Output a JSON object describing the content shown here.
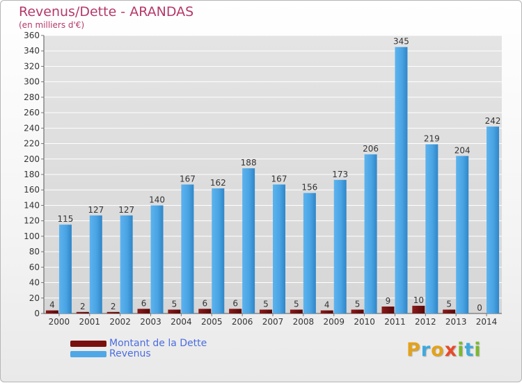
{
  "header": {
    "title": "Revenus/Dette - ARANDAS",
    "subtitle": "(en milliers d'€)"
  },
  "colors": {
    "revenus": "#4fa7e6",
    "dette": "#7a0f0f",
    "title": "#b5386a",
    "grid": "#ffffff"
  },
  "legend": {
    "items": [
      {
        "label": "Montant de la Dette",
        "color": "#7a0f0f"
      },
      {
        "label": "Revenus",
        "color": "#4fa7e6"
      }
    ],
    "placement": "bottom-left"
  },
  "logo": {
    "text": "Proxiti",
    "letters": [
      {
        "ch": "P",
        "color": "#e3a21a"
      },
      {
        "ch": "r",
        "color": "#3fa9dd"
      },
      {
        "ch": "o",
        "color": "#e3a21a"
      },
      {
        "ch": "x",
        "color": "#e84a2a"
      },
      {
        "ch": "i",
        "color": "#7cb82f"
      },
      {
        "ch": "t",
        "color": "#3fa9dd"
      },
      {
        "ch": "i",
        "color": "#7cb82f"
      }
    ]
  },
  "chart_data": {
    "type": "bar",
    "title": "Revenus/Dette - ARANDAS",
    "subtitle": "(en milliers d'€)",
    "categories": [
      "2000",
      "2001",
      "2002",
      "2003",
      "2004",
      "2005",
      "2006",
      "2007",
      "2008",
      "2009",
      "2010",
      "2011",
      "2012",
      "2013",
      "2014"
    ],
    "series": [
      {
        "name": "Montant de la Dette",
        "values": [
          4,
          2,
          2,
          6,
          5,
          6,
          6,
          5,
          5,
          4,
          5,
          9,
          10,
          5,
          0
        ]
      },
      {
        "name": "Revenus",
        "values": [
          115,
          127,
          127,
          140,
          167,
          162,
          188,
          167,
          156,
          173,
          206,
          345,
          219,
          204,
          242
        ]
      }
    ],
    "ylim": [
      0,
      360
    ],
    "yticks": [
      0,
      20,
      40,
      60,
      80,
      100,
      120,
      140,
      160,
      180,
      200,
      220,
      240,
      260,
      280,
      300,
      320,
      340,
      360
    ],
    "grid": true,
    "legend_position": "bottom-left"
  }
}
